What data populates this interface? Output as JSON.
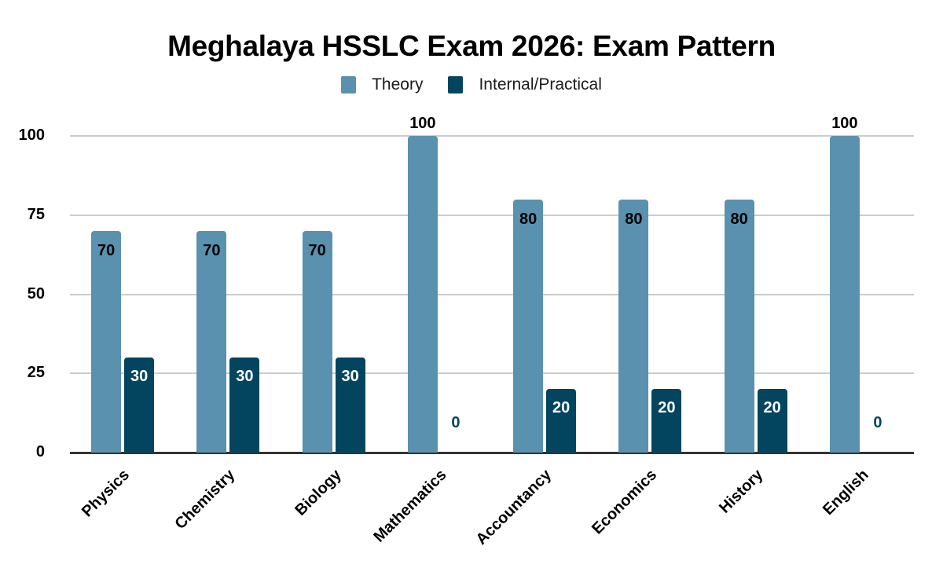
{
  "chart_data": {
    "type": "bar",
    "title": "Meghalaya HSSLC Exam 2026: Exam Pattern",
    "xlabel": "",
    "ylabel": "",
    "ylim": [
      0,
      100
    ],
    "yticks": [
      "0",
      "25",
      "50",
      "75",
      "100"
    ],
    "grid": true,
    "legend_position": "top",
    "categories": [
      "Physics",
      "Chemistry",
      "Biology",
      "Mathematics",
      "Accountancy",
      "Economics",
      "History",
      "English"
    ],
    "series": [
      {
        "name": "Theory",
        "color": "#5a91ae",
        "values": [
          70,
          70,
          70,
          100,
          80,
          80,
          80,
          100
        ]
      },
      {
        "name": "Internal/Practical",
        "color": "#03455e",
        "values": [
          30,
          30,
          30,
          0,
          20,
          20,
          20,
          0
        ]
      }
    ]
  },
  "legend": {
    "items": [
      {
        "label": "Theory",
        "color": "#5a91ae"
      },
      {
        "label": "Internal/Practical",
        "color": "#03455e"
      }
    ]
  }
}
